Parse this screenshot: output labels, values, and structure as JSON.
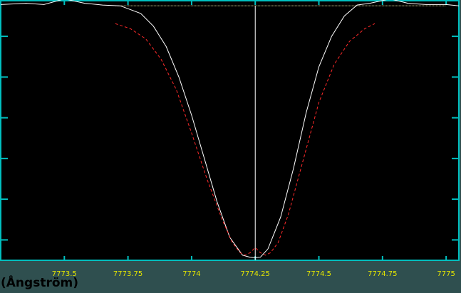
{
  "chart_data": {
    "type": "line",
    "x_unit_label": "(Ångström)",
    "xlim": [
      7773.25,
      7775.05
    ],
    "ylim": [
      0.0,
      1.02
    ],
    "x_ticks": [
      {
        "value": 7773.5,
        "label": "7773.5"
      },
      {
        "value": 7773.75,
        "label": "7773.75"
      },
      {
        "value": 7774.0,
        "label": "7774"
      },
      {
        "value": 7774.25,
        "label": "7774.25"
      },
      {
        "value": 7774.5,
        "label": "7774.5"
      },
      {
        "value": 7774.75,
        "label": "7774.75"
      },
      {
        "value": 7775.0,
        "label": "7775"
      }
    ],
    "y_ticks": [
      0.08,
      0.24,
      0.4,
      0.56,
      0.72,
      0.88
    ],
    "grid": false,
    "line_center": 7774.25,
    "continuum_level": 1.0,
    "continuum_range": [
      7773.7,
      7775.0
    ],
    "series": [
      {
        "style": "observed",
        "color": "#ffffff",
        "x": [
          7773.25,
          7773.35,
          7773.42,
          7773.5,
          7773.58,
          7773.65,
          7773.72,
          7773.8,
          7773.85,
          7773.9,
          7773.95,
          7774.0,
          7774.05,
          7774.1,
          7774.15,
          7774.2,
          7774.23,
          7774.25,
          7774.27,
          7774.3,
          7774.35,
          7774.4,
          7774.45,
          7774.5,
          7774.55,
          7774.6,
          7774.65,
          7774.7,
          7774.78,
          7774.85,
          7774.92,
          7775.0,
          7775.05
        ],
        "y": [
          1.005,
          1.01,
          1.005,
          1.027,
          1.01,
          1.003,
          1.0,
          0.97,
          0.92,
          0.84,
          0.72,
          0.57,
          0.4,
          0.23,
          0.09,
          0.02,
          0.012,
          0.01,
          0.012,
          0.045,
          0.17,
          0.36,
          0.58,
          0.76,
          0.88,
          0.96,
          1.003,
          1.01,
          1.027,
          1.01,
          1.005,
          1.005,
          1.0
        ]
      },
      {
        "style": "fit",
        "color": "#ff2a2a",
        "x": [
          7773.7,
          7773.76,
          7773.82,
          7773.88,
          7773.94,
          7774.0,
          7774.06,
          7774.12,
          7774.16,
          7774.19,
          7774.21,
          7774.23,
          7774.25,
          7774.27,
          7774.29,
          7774.31,
          7774.34,
          7774.38,
          7774.44,
          7774.5,
          7774.56,
          7774.62,
          7774.68,
          7774.72
        ],
        "y": [
          0.93,
          0.91,
          0.87,
          0.79,
          0.67,
          0.5,
          0.32,
          0.16,
          0.07,
          0.03,
          0.02,
          0.03,
          0.05,
          0.03,
          0.02,
          0.03,
          0.07,
          0.18,
          0.4,
          0.62,
          0.77,
          0.86,
          0.91,
          0.93
        ]
      }
    ]
  }
}
